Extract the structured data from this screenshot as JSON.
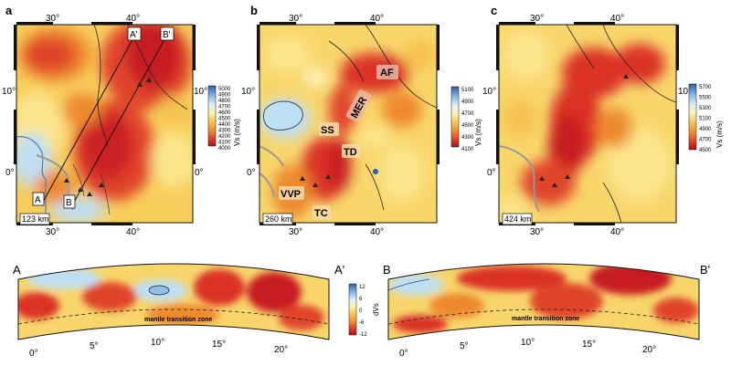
{
  "maps": [
    {
      "panel_label": "a",
      "depth": "123 km",
      "lon_labels": [
        "30°",
        "40°"
      ],
      "lat_labels": [
        "10°",
        "0°"
      ],
      "colorbar": {
        "title": "Vs (m/s)",
        "ticks": [
          "5000",
          "4900",
          "4800",
          "4700",
          "4600",
          "4500",
          "4400",
          "4300",
          "4200",
          "4100",
          "4000"
        ]
      },
      "profile_labels": [
        "A",
        "B",
        "A'",
        "B'"
      ],
      "annotations": []
    },
    {
      "panel_label": "b",
      "depth": "260 km",
      "lon_labels": [
        "30°",
        "40°"
      ],
      "lat_labels": [
        "10°",
        "0°"
      ],
      "colorbar": {
        "title": "Vs (m/s)",
        "ticks": [
          "5100",
          "4900",
          "4700",
          "4500",
          "4300",
          "4100"
        ]
      },
      "annotations": [
        "AF",
        "MER",
        "SS",
        "TD",
        "VVP",
        "TC"
      ]
    },
    {
      "panel_label": "c",
      "depth": "424 km",
      "lon_labels": [
        "30°",
        "40°"
      ],
      "lat_labels": [
        "10°",
        "0°"
      ],
      "colorbar": {
        "title": "Vs (m/s)",
        "ticks": [
          "5700",
          "5500",
          "5300",
          "5100",
          "4900",
          "4700",
          "4500"
        ]
      },
      "annotations": []
    }
  ],
  "cross_sections": [
    {
      "start_label": "A",
      "end_label": "A'",
      "distance_ticks": [
        "0°",
        "5°",
        "10°",
        "15°",
        "20°"
      ],
      "annotation": "mantle transition zone"
    },
    {
      "start_label": "B",
      "end_label": "B'",
      "distance_ticks": [
        "0°",
        "5°",
        "10°",
        "15°",
        "20°"
      ],
      "annotation": "mantle transition zone"
    }
  ],
  "dvs_colorbar": {
    "title": "dVs",
    "ticks": [
      "12",
      "6",
      "0",
      "-6",
      "-12"
    ]
  },
  "colors": {
    "fast": "#3a6fb5",
    "light_blue": "#bcdcf0",
    "neutral": "#fbf0a8",
    "slow": "#f2b64a",
    "slower": "#ec7a2c",
    "slowest": "#d6232a",
    "darkest": "#9a1620"
  }
}
